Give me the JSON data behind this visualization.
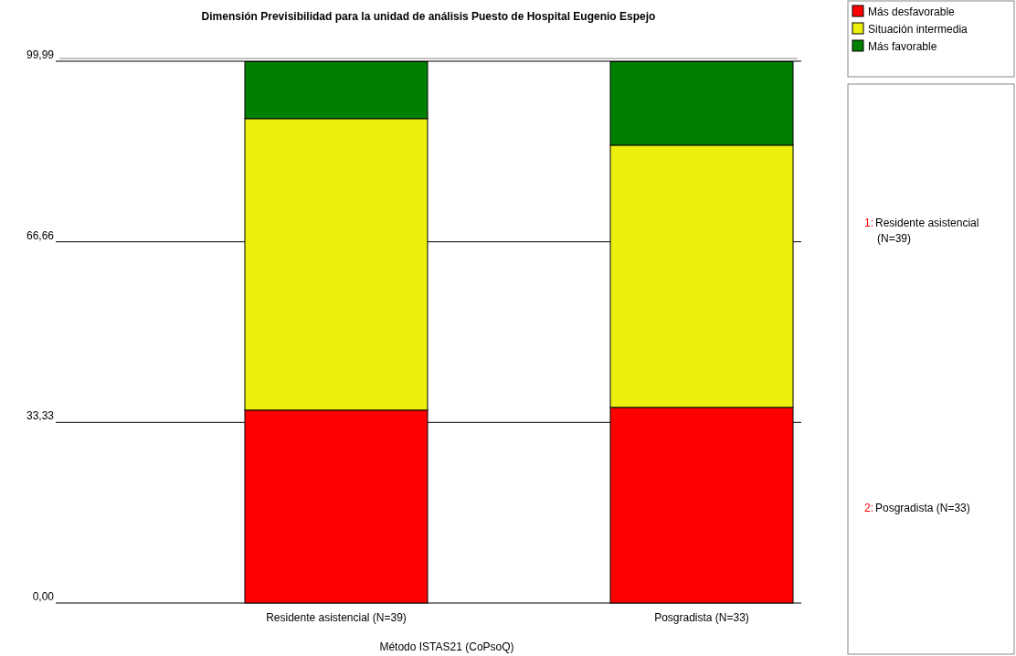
{
  "chart_data": {
    "type": "bar",
    "title": "Dimensión Previsibilidad para la unidad de análisis Puesto de Hospital Eugenio Espejo",
    "xlabel": "Método ISTAS21 (CoPsoQ)",
    "categories": [
      "Residente asistencial (N=39)",
      "Posgradista (N=33)"
    ],
    "stacked": true,
    "series": [
      {
        "name": "Más desfavorable",
        "color": "#ff0000",
        "values": [
          35.6,
          36.1
        ]
      },
      {
        "name": "Situación intermedia",
        "color": "#eaf00c",
        "values": [
          53.8,
          48.4
        ]
      },
      {
        "name": "Más favorable",
        "color": "#008000",
        "values": [
          10.5,
          15.4
        ]
      }
    ],
    "ylim": [
      0,
      99.99
    ],
    "yticks": [
      {
        "value": 0,
        "label": "0,00"
      },
      {
        "value": 33.33,
        "label": "33,33"
      },
      {
        "value": 66.66,
        "label": "66,66"
      },
      {
        "value": 99.99,
        "label": "99,99"
      }
    ],
    "grid": "y",
    "legend": "top right",
    "annotations": [
      "1: Residente asistencial (N=39)",
      "2: Posgradista (N=33)"
    ]
  }
}
